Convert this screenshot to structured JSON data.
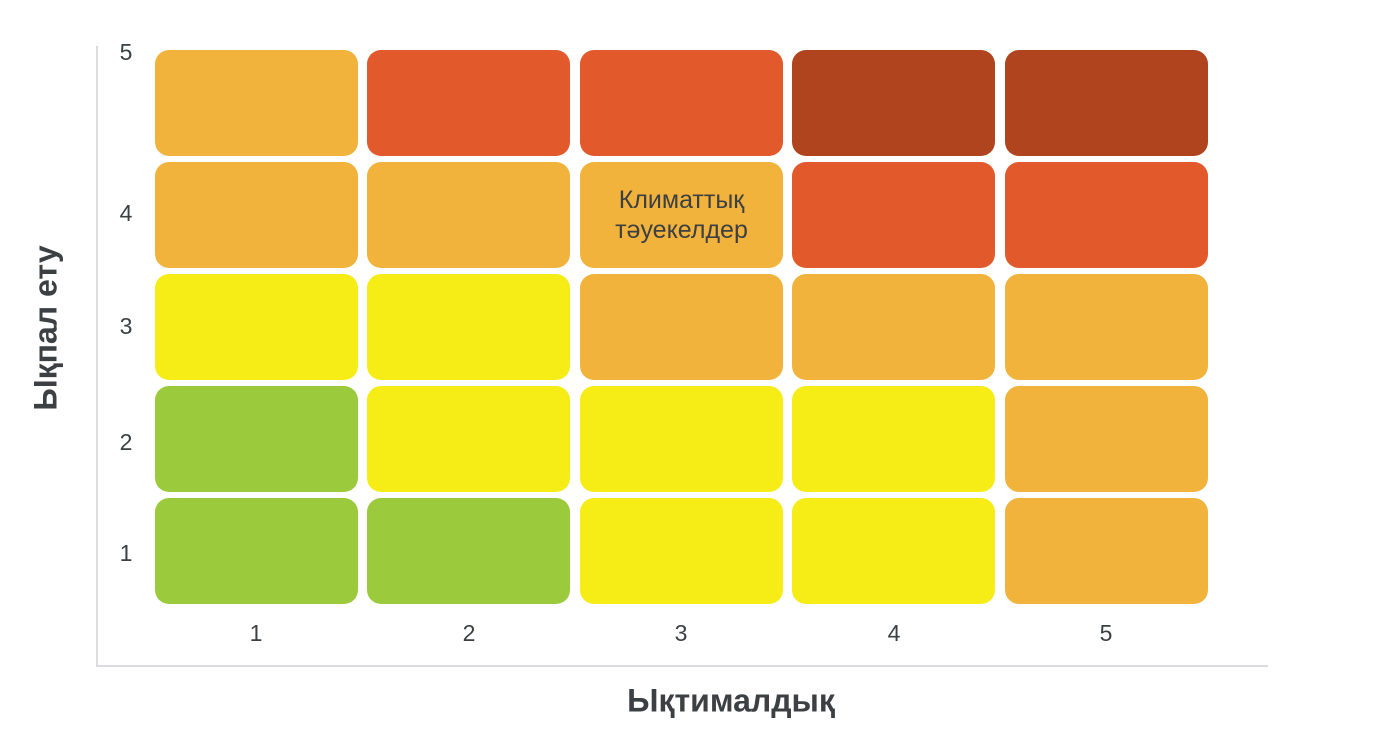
{
  "chart_data": {
    "type": "heatmap",
    "title": "",
    "xlabel": "Ықтималдық",
    "ylabel": "Ықпал ету",
    "x_ticks": [
      "1",
      "2",
      "3",
      "4",
      "5"
    ],
    "y_ticks_top_to_bottom": [
      "5",
      "4",
      "3",
      "2",
      "1"
    ],
    "x_range": [
      1,
      5
    ],
    "y_range": [
      1,
      5
    ],
    "grid": false,
    "legend": "none",
    "matrix_rows_top_to_bottom": [
      [
        "orange",
        "red",
        "red",
        "darkred",
        "darkred"
      ],
      [
        "orange",
        "orange",
        "orange",
        "red",
        "red"
      ],
      [
        "yellow",
        "yellow",
        "orange",
        "orange",
        "orange"
      ],
      [
        "green",
        "yellow",
        "yellow",
        "yellow",
        "orange"
      ],
      [
        "green",
        "green",
        "yellow",
        "yellow",
        "orange"
      ]
    ],
    "level_colors": {
      "green": "#9bcb3c",
      "yellow": "#f6ec16",
      "orange": "#f2b33c",
      "red": "#e2592b",
      "darkred": "#b0441f"
    },
    "annotations": [
      {
        "x": 3,
        "y": 4,
        "label": "Климаттық тәуекелдер"
      }
    ]
  },
  "colors": {
    "axis_line": "#dadce0",
    "text": "#3c4043",
    "background": "#ffffff"
  }
}
